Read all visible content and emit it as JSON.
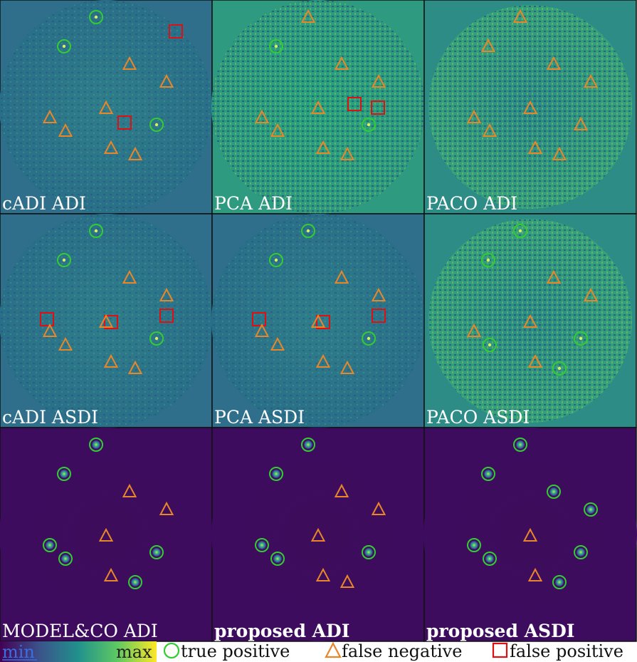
{
  "panels": [
    {
      "label": "cADI ADI",
      "variant": "teal",
      "bold": false,
      "markers": [
        [
          "tp",
          135,
          24
        ],
        [
          "tp",
          90,
          65
        ],
        [
          "fp",
          247,
          44
        ],
        [
          "fn",
          182,
          90
        ],
        [
          "fn",
          234,
          115
        ],
        [
          "fn",
          149,
          152
        ],
        [
          "fn",
          70,
          165
        ],
        [
          "fn",
          92,
          184
        ],
        [
          "fp",
          175,
          172
        ],
        [
          "tp",
          220,
          175
        ],
        [
          "fn",
          156,
          208
        ],
        [
          "fn",
          190,
          217
        ]
      ]
    },
    {
      "label": "PCA ADI",
      "variant": "green",
      "bold": false,
      "markers": [
        [
          "fn",
          135,
          24
        ],
        [
          "tp",
          90,
          65
        ],
        [
          "fn",
          182,
          90
        ],
        [
          "fn",
          234,
          115
        ],
        [
          "fp",
          200,
          146
        ],
        [
          "fp",
          233,
          151
        ],
        [
          "fn",
          149,
          152
        ],
        [
          "fn",
          70,
          165
        ],
        [
          "fn",
          92,
          184
        ],
        [
          "tp",
          220,
          175
        ],
        [
          "fn",
          156,
          208
        ],
        [
          "fn",
          190,
          217
        ]
      ]
    },
    {
      "label": "PACO ADI",
      "variant": "paco",
      "bold": false,
      "markers": [
        [
          "fn",
          135,
          24
        ],
        [
          "fn",
          90,
          65
        ],
        [
          "fn",
          182,
          90
        ],
        [
          "fn",
          234,
          115
        ],
        [
          "fn",
          149,
          152
        ],
        [
          "fn",
          70,
          165
        ],
        [
          "fn",
          92,
          184
        ],
        [
          "fn",
          220,
          175
        ],
        [
          "fn",
          156,
          208
        ],
        [
          "fn",
          190,
          217
        ]
      ]
    },
    {
      "label": "cADI ASDI",
      "variant": "teal",
      "bold": false,
      "markers": [
        [
          "tp",
          135,
          24
        ],
        [
          "tp",
          90,
          65
        ],
        [
          "fn",
          182,
          90
        ],
        [
          "fn",
          234,
          115
        ],
        [
          "fp",
          66,
          148
        ],
        [
          "fn",
          70,
          165
        ],
        [
          "fp",
          156,
          152
        ],
        [
          "fn",
          149,
          152
        ],
        [
          "fp",
          234,
          143
        ],
        [
          "tp",
          220,
          175
        ],
        [
          "fn",
          92,
          184
        ],
        [
          "fn",
          156,
          208
        ],
        [
          "fn",
          190,
          217
        ]
      ]
    },
    {
      "label": "PCA ASDI",
      "variant": "teal",
      "bold": false,
      "markers": [
        [
          "tp",
          135,
          24
        ],
        [
          "tp",
          90,
          65
        ],
        [
          "fn",
          182,
          90
        ],
        [
          "fn",
          234,
          115
        ],
        [
          "fp",
          66,
          148
        ],
        [
          "fn",
          70,
          165
        ],
        [
          "fp",
          156,
          152
        ],
        [
          "fn",
          149,
          152
        ],
        [
          "fp",
          234,
          143
        ],
        [
          "tp",
          220,
          175
        ],
        [
          "fn",
          92,
          184
        ],
        [
          "fn",
          156,
          208
        ],
        [
          "fn",
          190,
          217
        ]
      ]
    },
    {
      "label": "PACO ASDI",
      "variant": "paco",
      "bold": false,
      "markers": [
        [
          "tp",
          135,
          24
        ],
        [
          "tp",
          90,
          65
        ],
        [
          "fn",
          182,
          90
        ],
        [
          "fn",
          234,
          115
        ],
        [
          "fn",
          149,
          152
        ],
        [
          "fn",
          70,
          165
        ],
        [
          "tp",
          92,
          184
        ],
        [
          "tp",
          220,
          175
        ],
        [
          "fn",
          156,
          208
        ],
        [
          "tp",
          190,
          217
        ]
      ]
    },
    {
      "label": "MODEL&CO ADI",
      "variant": "dark",
      "bold": false,
      "markers": [
        [
          "tp",
          135,
          24
        ],
        [
          "tp",
          90,
          65
        ],
        [
          "fn",
          182,
          90
        ],
        [
          "fn",
          234,
          115
        ],
        [
          "fn",
          149,
          152
        ],
        [
          "tp",
          70,
          165
        ],
        [
          "tp",
          92,
          184
        ],
        [
          "tp",
          220,
          175
        ],
        [
          "fn",
          156,
          208
        ],
        [
          "tp",
          190,
          217
        ]
      ]
    },
    {
      "label": "proposed ADI",
      "variant": "dark",
      "bold": true,
      "markers": [
        [
          "tp",
          135,
          24
        ],
        [
          "tp",
          90,
          65
        ],
        [
          "fn",
          182,
          90
        ],
        [
          "fn",
          234,
          115
        ],
        [
          "fn",
          149,
          152
        ],
        [
          "tp",
          70,
          165
        ],
        [
          "tp",
          92,
          184
        ],
        [
          "tp",
          220,
          175
        ],
        [
          "fn",
          156,
          208
        ],
        [
          "fn",
          190,
          217
        ]
      ]
    },
    {
      "label": "proposed ASDI",
      "variant": "dark",
      "bold": true,
      "markers": [
        [
          "tp",
          135,
          24
        ],
        [
          "tp",
          90,
          65
        ],
        [
          "tp",
          182,
          90
        ],
        [
          "tp",
          234,
          115
        ],
        [
          "fn",
          149,
          152
        ],
        [
          "tp",
          70,
          165
        ],
        [
          "tp",
          92,
          184
        ],
        [
          "tp",
          220,
          175
        ],
        [
          "fn",
          156,
          208
        ],
        [
          "tp",
          190,
          217
        ]
      ]
    }
  ],
  "colorbar": {
    "min_label": "min",
    "max_label": "max"
  },
  "legend": {
    "tp_label": "true positive",
    "fn_label": "false negative",
    "fp_label": "false positive"
  },
  "colors": {
    "tp": "#33cc33",
    "fn": "#e8862a",
    "fp": "#dd1111",
    "label": "#ffffff",
    "min_label": "#3a6fe0",
    "max_label": "#222222"
  }
}
